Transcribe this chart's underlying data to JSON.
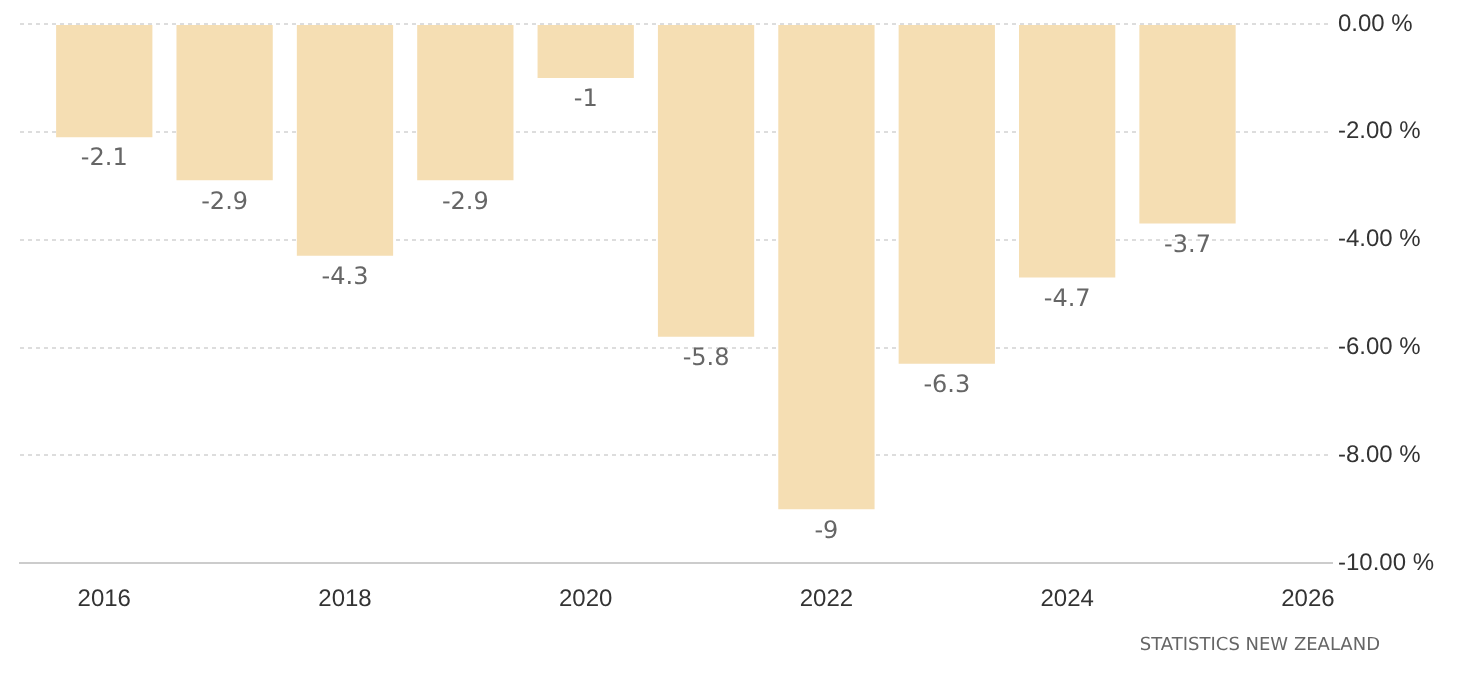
{
  "chart_data": {
    "type": "bar",
    "x": [
      2016,
      2017,
      2018,
      2019,
      2020,
      2021,
      2022,
      2023,
      2024,
      2025
    ],
    "values": [
      -2.1,
      -2.9,
      -4.3,
      -2.9,
      -1,
      -5.8,
      -9,
      -6.3,
      -4.7,
      -3.7
    ],
    "color": "#f5deb3",
    "xlim": [
      2015.3,
      2026.2
    ],
    "xticks": [
      2016,
      2018,
      2020,
      2022,
      2024,
      2026
    ],
    "ylim": [
      -10,
      0
    ],
    "yticks": [
      {
        "value": 0,
        "label": "0.00 %"
      },
      {
        "value": -2,
        "label": "-2.00 %"
      },
      {
        "value": -4,
        "label": "-4.00 %"
      },
      {
        "value": -6,
        "label": "-6.00 %"
      },
      {
        "value": -8,
        "label": "-8.00 %"
      },
      {
        "value": -10,
        "label": "-10.00 %"
      }
    ],
    "grid": "y",
    "legend": false,
    "data_labels": true,
    "annotations": [
      "STATISTICS NEW ZEALAND"
    ]
  }
}
